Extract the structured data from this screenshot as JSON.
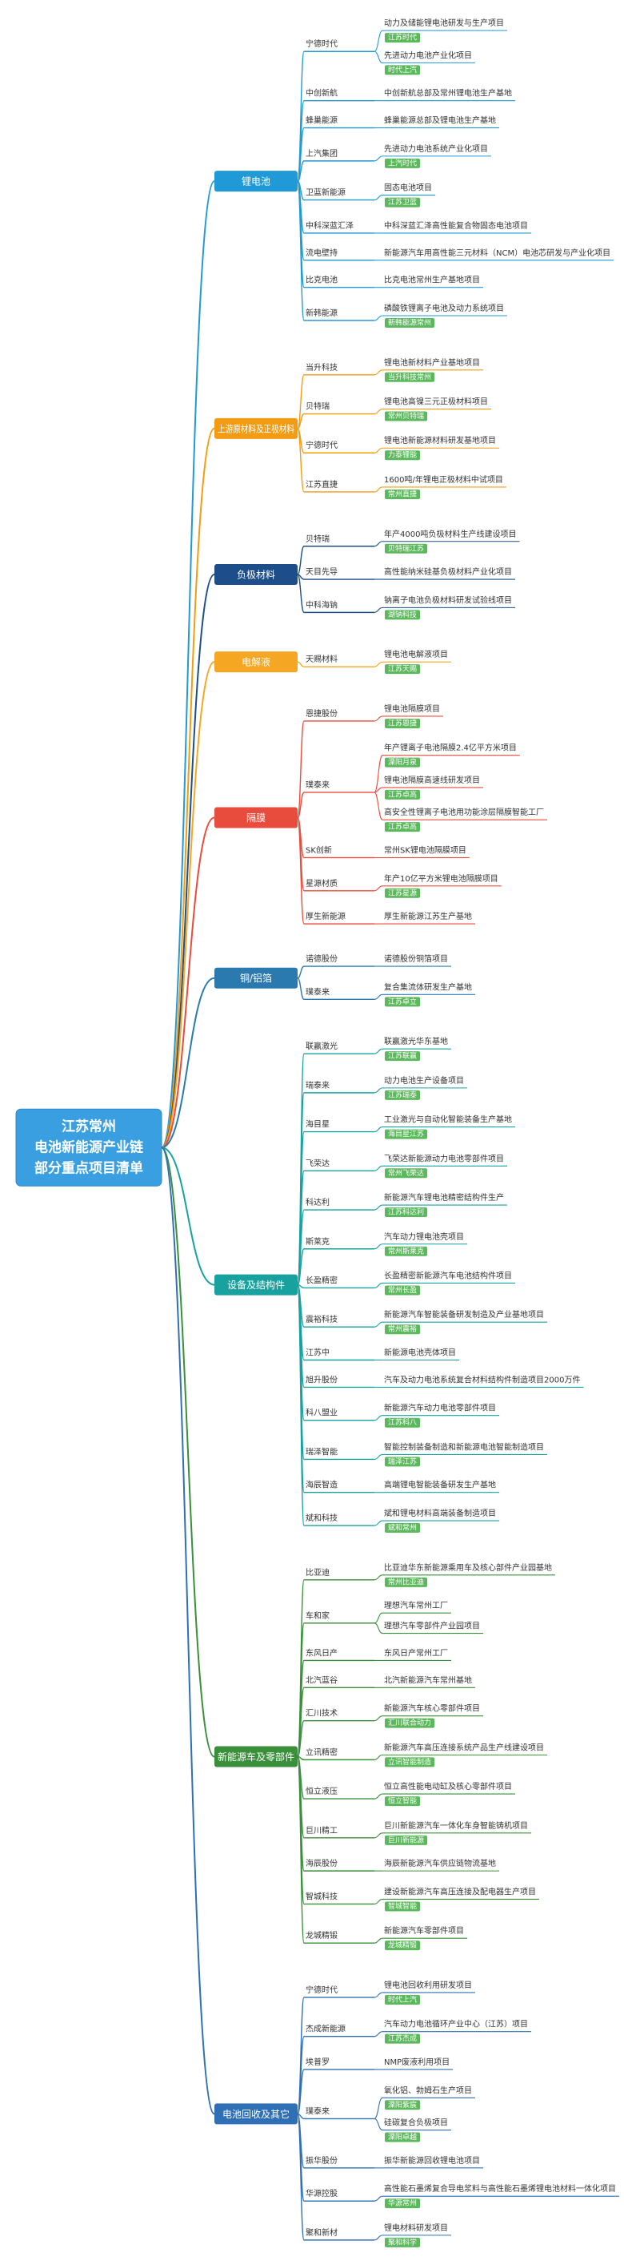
{
  "root": [
    "江苏常州",
    "电池新能源产业链",
    "部分重点项目清单"
  ],
  "branches": [
    {
      "label": "锂电池",
      "color": "#1f9ad6",
      "children": [
        {
          "label": "宁德时代",
          "leaves": [
            {
              "text": "动力及储能锂电池研发与生产项目",
              "tag": "江苏时代"
            },
            {
              "text": "先进动力电池产业化项目",
              "tag": "时代上汽"
            }
          ]
        },
        {
          "label": "中创新航",
          "leaves": [
            {
              "text": "中创新航总部及常州锂电池生产基地"
            }
          ]
        },
        {
          "label": "蜂巢能源",
          "leaves": [
            {
              "text": "蜂巢能源总部及锂电池生产基地"
            }
          ]
        },
        {
          "label": "上汽集团",
          "leaves": [
            {
              "text": "先进动力电池系统产业化项目",
              "tag": "上汽时代"
            }
          ]
        },
        {
          "label": "卫蓝新能源",
          "leaves": [
            {
              "text": "固态电池项目",
              "tag": "江苏卫蓝"
            }
          ]
        },
        {
          "label": "中科深蓝汇泽",
          "leaves": [
            {
              "text": "中科深蓝汇泽高性能复合物固态电池项目"
            }
          ]
        },
        {
          "label": "流电壁持",
          "leaves": [
            {
              "text": "新能源汽车用高性能三元材料（NCM）电池芯研发与产业化项目"
            }
          ]
        },
        {
          "label": "比克电池",
          "leaves": [
            {
              "text": "比克电池常州生产基地项目"
            }
          ]
        },
        {
          "label": "新韩能源",
          "leaves": [
            {
              "text": "磷酸铁锂离子电池及动力系统项目",
              "tag": "新韩能源常州"
            }
          ]
        }
      ]
    },
    {
      "label": "上游原材料及正极材料",
      "color": "#f39c12",
      "children": [
        {
          "label": "当升科技",
          "leaves": [
            {
              "text": "锂电池新材料产业基地项目",
              "tag": "当升科技常州"
            }
          ]
        },
        {
          "label": "贝特瑞",
          "leaves": [
            {
              "text": "锂电池高镍三元正极材料项目",
              "tag": "常州贝特瑞"
            }
          ]
        },
        {
          "label": "宁德时代",
          "leaves": [
            {
              "text": "锂电池新能源材料研发基地项目",
              "tag": "力泰锂能"
            }
          ]
        },
        {
          "label": "江苏直捷",
          "leaves": [
            {
              "text": "1600吨/年锂电正极材料中试项目",
              "tag": "常州直捷"
            }
          ]
        }
      ]
    },
    {
      "label": "负极材料",
      "color": "#1d4e89",
      "children": [
        {
          "label": "贝特瑞",
          "leaves": [
            {
              "text": "年产4000吨负极材料生产线建设项目",
              "tag": "贝特瑞江苏"
            }
          ]
        },
        {
          "label": "天目先导",
          "leaves": [
            {
              "text": "高性能纳米硅基负极材料产业化项目"
            }
          ]
        },
        {
          "label": "中科海钠",
          "leaves": [
            {
              "text": "钠离子电池负极材料研发试验线项目",
              "tag": "湖钠科技"
            }
          ]
        }
      ]
    },
    {
      "label": "电解液",
      "color": "#f5a623",
      "children": [
        {
          "label": "天赐材料",
          "leaves": [
            {
              "text": "锂电池电解液项目",
              "tag": "江苏天赐"
            }
          ]
        }
      ]
    },
    {
      "label": "隔膜",
      "color": "#e74c3c",
      "children": [
        {
          "label": "恩捷股份",
          "leaves": [
            {
              "text": "锂电池隔膜项目",
              "tag": "江苏恩捷"
            }
          ]
        },
        {
          "label": "璞泰来",
          "leaves": [
            {
              "text": "年产锂离子电池隔膜2.4亿平方米项目",
              "tag": "溧阳月泉"
            },
            {
              "text": "锂电池隔膜高速线研发项目",
              "tag": "江苏卓高"
            },
            {
              "text": "高安全性锂离子电池用功能涂层隔膜智能工厂",
              "tag": "江苏卓高"
            }
          ]
        },
        {
          "label": "SK创新",
          "leaves": [
            {
              "text": "常州SK锂电池隔膜项目"
            }
          ]
        },
        {
          "label": "星源材质",
          "leaves": [
            {
              "text": "年产10亿平方米锂电池隔膜项目",
              "tag": "江苏星源"
            }
          ]
        },
        {
          "label": "厚生新能源",
          "leaves": [
            {
              "text": "厚生新能源江苏生产基地"
            }
          ]
        }
      ]
    },
    {
      "label": "铜/铝箔",
      "color": "#2a7ab0",
      "children": [
        {
          "label": "诺德股份",
          "leaves": [
            {
              "text": "诺德股份铜箔项目"
            }
          ]
        },
        {
          "label": "璞泰来",
          "leaves": [
            {
              "text": "复合集流体研发生产基地",
              "tag": "江苏卓立"
            }
          ]
        }
      ]
    },
    {
      "label": "设备及结构件",
      "color": "#17a2a0",
      "children": [
        {
          "label": "联赢激光",
          "leaves": [
            {
              "text": "联赢激光华东基地",
              "tag": "江苏联赢"
            }
          ]
        },
        {
          "label": "瑞泰来",
          "leaves": [
            {
              "text": "动力电池生产设备项目",
              "tag": "江苏瑞泰"
            }
          ]
        },
        {
          "label": "海目星",
          "leaves": [
            {
              "text": "工业激光与自动化智能装备生产基地",
              "tag": "海目星江苏"
            }
          ]
        },
        {
          "label": "飞荣达",
          "leaves": [
            {
              "text": "飞荣达新能源动力电池零部件项目",
              "tag": "常州飞荣达"
            }
          ]
        },
        {
          "label": "科达利",
          "leaves": [
            {
              "text": "新能源汽车锂电池精密结构件生产",
              "tag": "江苏科达利"
            }
          ]
        },
        {
          "label": "斯莱克",
          "leaves": [
            {
              "text": "汽车动力锂电池壳项目",
              "tag": "常州斯莱克"
            }
          ]
        },
        {
          "label": "长盈精密",
          "leaves": [
            {
              "text": "长盈精密新能源汽车电池结构件项目",
              "tag": "常州长盈"
            }
          ]
        },
        {
          "label": "震裕科技",
          "leaves": [
            {
              "text": "新能源汽车智能装备研发制造及产业基地项目",
              "tag": "常州震裕"
            }
          ]
        },
        {
          "label": "江苏中",
          "leaves": [
            {
              "text": "新能源电池壳体项目"
            }
          ]
        },
        {
          "label": "旭升股份",
          "leaves": [
            {
              "text": "汽车及动力电池系统复合材料结构件制造项目2000万件"
            }
          ]
        },
        {
          "label": "科八盟业",
          "leaves": [
            {
              "text": "新能源汽车动力电池零部件项目",
              "tag": "江苏科八"
            }
          ]
        },
        {
          "label": "瑞泽智能",
          "leaves": [
            {
              "text": "智能控制装备制造和新能源电池智能制造项目",
              "tag": "瑞泽江苏"
            }
          ]
        },
        {
          "label": "海辰智造",
          "leaves": [
            {
              "text": "高端锂电智能装备研发生产基地"
            }
          ]
        },
        {
          "label": "斌和科技",
          "leaves": [
            {
              "text": "斌和锂电材料高端装备制造项目",
              "tag": "斌和常州"
            }
          ]
        }
      ]
    },
    {
      "label": "新能源车及零部件",
      "color": "#3a8f3a",
      "children": [
        {
          "label": "比亚迪",
          "leaves": [
            {
              "text": "比亚迪华东新能源乘用车及核心部件产业园基地",
              "tag": "常州比亚迪"
            }
          ]
        },
        {
          "label": "车和家",
          "leaves": [
            {
              "text": "理想汽车常州工厂"
            },
            {
              "text": "理想汽车零部件产业园项目"
            }
          ]
        },
        {
          "label": "东风日产",
          "leaves": [
            {
              "text": "东风日产常州工厂"
            }
          ]
        },
        {
          "label": "北汽蓝谷",
          "leaves": [
            {
              "text": "北汽新能源汽车常州基地"
            }
          ]
        },
        {
          "label": "汇川技术",
          "leaves": [
            {
              "text": "新能源汽车核心零部件项目",
              "tag": "汇川联合动力"
            }
          ]
        },
        {
          "label": "立讯精密",
          "leaves": [
            {
              "text": "新能源汽车高压连接系统产品生产线建设项目",
              "tag": "立讯智能制造"
            }
          ]
        },
        {
          "label": "恒立液压",
          "leaves": [
            {
              "text": "恒立高性能电动缸及核心零部件项目",
              "tag": "恒立智能"
            }
          ]
        },
        {
          "label": "巨川精工",
          "leaves": [
            {
              "text": "巨川新能源汽车一体化车身智能铸机项目",
              "tag": "巨川新能源"
            }
          ]
        },
        {
          "label": "海辰股份",
          "leaves": [
            {
              "text": "海辰新能源汽车供应链物流基地"
            }
          ]
        },
        {
          "label": "智城科技",
          "leaves": [
            {
              "text": "建设新能源汽车高压连接及配电器生产项目",
              "tag": "智城智能"
            }
          ]
        },
        {
          "label": "龙城精锻",
          "leaves": [
            {
              "text": "新能源汽车零部件项目",
              "tag": "龙城精锻"
            }
          ]
        }
      ]
    },
    {
      "label": "电池回收及其它",
      "color": "#2f6fb5",
      "children": [
        {
          "label": "宁德时代",
          "leaves": [
            {
              "text": "锂电池回收利用研发项目",
              "tag": "时代上汽"
            }
          ]
        },
        {
          "label": "杰成新能源",
          "leaves": [
            {
              "text": "汽车动力电池循环产业中心（江苏）项目",
              "tag": "江苏杰成"
            }
          ]
        },
        {
          "label": "埃普罗",
          "leaves": [
            {
              "text": "NMP废液利用项目"
            }
          ]
        },
        {
          "label": "璞泰来",
          "leaves": [
            {
              "text": "氧化铝、勃姆石生产项目",
              "tag": "溧阳紫宸"
            },
            {
              "text": "硅碳复合负极项目",
              "tag": "溧阳卓越"
            }
          ]
        },
        {
          "label": "振华股份",
          "leaves": [
            {
              "text": "振华新能源回收锂电池项目"
            }
          ]
        },
        {
          "label": "华源控股",
          "leaves": [
            {
              "text": "高性能石墨烯复合导电浆料与高性能石墨烯锂电池材料一体化项目",
              "tag": "华源常州"
            }
          ]
        },
        {
          "label": "聚和新材",
          "leaves": [
            {
              "text": "锂电材料研发项目",
              "tag": "聚和科学"
            }
          ]
        }
      ]
    }
  ]
}
